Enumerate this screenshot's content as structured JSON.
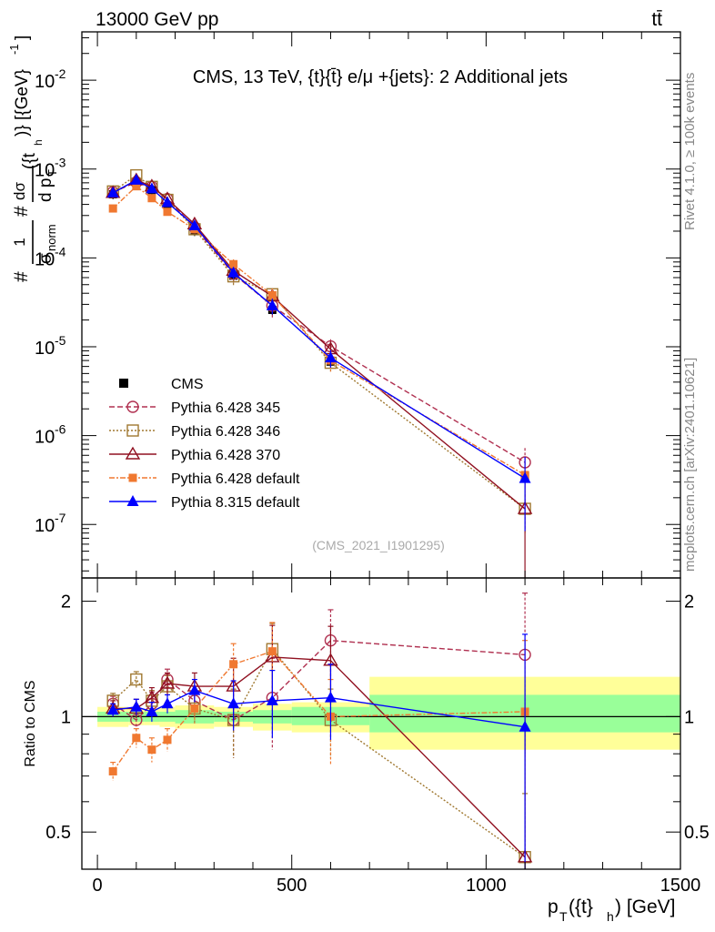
{
  "header": {
    "left_label": "13000 GeV pp",
    "right_label": "tt̄"
  },
  "side_labels": {
    "rivet": "Rivet 4.1.0, ≥ 100k events",
    "mcplots": "mcplots.cern.ch [arXiv:2401.10621]"
  },
  "colors": {
    "cms": "#000000",
    "p345": "#b03050",
    "p346": "#a07830",
    "p370": "#901020",
    "pdef": "#f07830",
    "p8": "#0000ff",
    "band_yellow": "#ffff99",
    "band_green": "#99ff99"
  },
  "chart_data": {
    "type": "line",
    "title": "CMS, 13 TeV, {t}{t̄} e/μ +{jets}: 2 Additional jets",
    "watermark": "(CMS_2021_I1901295)",
    "xlabel": "p_T({t}_h) [GeV]",
    "xlabel_main": "p",
    "xlabel_sub1": "T",
    "xlabel_mid": "({t}",
    "xlabel_sub2": "h",
    "xlabel_tail": ") [GeV]",
    "ylabel_main": "#1/σ_norm # dσ/d p_T({t}_h) [{GeV}^-1]",
    "ylabel_parts": {
      "hash1": "#",
      "one": "1",
      "sigma": "σ",
      "norm": "norm",
      "hash2": "#",
      "dsig": "dσ",
      "dp": "d p",
      "T": "T",
      "arg": "({t",
      "h": "h",
      "brace": ")} [{GeV}",
      "exp": "-1",
      "close": "]"
    },
    "ylabel_ratio": "Ratio to CMS",
    "xlim": [
      -40,
      1500
    ],
    "ylim_main": [
      2.5e-08,
      0.035
    ],
    "ylim_ratio": [
      0.4,
      2.3
    ],
    "x_ticks": [
      "0",
      "500",
      "1000",
      "1500"
    ],
    "x_tick_values": [
      0,
      500,
      1000,
      1500
    ],
    "y_ticks_main": [
      {
        "base": "10",
        "exp": "-2",
        "value": 0.01
      },
      {
        "base": "10",
        "exp": "-3",
        "value": 0.001
      },
      {
        "base": "10",
        "exp": "-4",
        "value": 0.0001
      },
      {
        "base": "10",
        "exp": "-5",
        "value": 1e-05
      },
      {
        "base": "10",
        "exp": "-6",
        "value": 1e-06
      },
      {
        "base": "10",
        "exp": "-7",
        "value": 1e-07
      }
    ],
    "y_ticks_ratio": [
      {
        "label": "2",
        "value": 2
      },
      {
        "label": "1",
        "value": 1
      },
      {
        "label": "0.5",
        "value": 0.5
      }
    ],
    "bins": [
      [
        0,
        80
      ],
      [
        80,
        120
      ],
      [
        120,
        160
      ],
      [
        160,
        200
      ],
      [
        200,
        300
      ],
      [
        300,
        400
      ],
      [
        400,
        500
      ],
      [
        500,
        700
      ],
      [
        700,
        1500
      ]
    ],
    "band": {
      "yellow": [
        [
          0.94,
          1.06
        ],
        [
          0.95,
          1.05
        ],
        [
          0.95,
          1.05
        ],
        [
          0.94,
          1.06
        ],
        [
          0.93,
          1.07
        ],
        [
          0.94,
          1.06
        ],
        [
          0.92,
          1.08
        ],
        [
          0.91,
          1.09
        ],
        [
          0.82,
          1.27
        ]
      ],
      "green": [
        [
          0.97,
          1.03
        ],
        [
          0.97,
          1.03
        ],
        [
          0.97,
          1.03
        ],
        [
          0.97,
          1.03
        ],
        [
          0.96,
          1.04
        ],
        [
          0.97,
          1.03
        ],
        [
          0.96,
          1.04
        ],
        [
          0.95,
          1.06
        ],
        [
          0.91,
          1.14
        ]
      ]
    },
    "x": [
      40,
      100,
      140,
      180,
      250,
      350,
      450,
      600,
      1100
    ],
    "cms": {
      "name": "CMS",
      "values": [
        0.00052,
        0.00072,
        0.00058,
        0.00038,
        0.0002,
        6.3e-05,
        2.6e-05,
        6.8e-06,
        3.5e-07
      ]
    },
    "series": [
      {
        "key": "p345",
        "name": "Pythia 6.428 345",
        "marker": "circle-open",
        "dash": "6,3",
        "values": [
          0.00055,
          0.00071,
          0.00063,
          0.00046,
          0.00022,
          6.6e-05,
          2.9e-05,
          1.01e-05,
          5e-07
        ],
        "ratio": [
          1.08,
          0.98,
          1.08,
          1.25,
          1.1,
          0.98,
          1.12,
          1.58,
          1.45
        ],
        "ratio_err": [
          0.05,
          0.06,
          0.08,
          0.08,
          0.1,
          0.2,
          0.3,
          0.32,
          0.65
        ]
      },
      {
        "key": "p346",
        "name": "Pythia 6.428 346",
        "marker": "square-open",
        "dash": "2,2",
        "values": [
          0.00056,
          0.00085,
          0.00063,
          0.00045,
          0.00021,
          6.2e-05,
          3.9e-05,
          6.6e-06,
          1.5e-07
        ],
        "ratio": [
          1.1,
          1.25,
          1.1,
          1.2,
          1.05,
          0.98,
          1.5,
          0.98,
          0.43
        ],
        "ratio_err": [
          0.05,
          0.06,
          0.07,
          0.08,
          0.1,
          0.2,
          0.25,
          0.2,
          0.2
        ]
      },
      {
        "key": "p370",
        "name": "Pythia 6.428 370",
        "marker": "triangle-open",
        "dash": "",
        "values": [
          0.00054,
          0.00075,
          0.00064,
          0.00046,
          0.00024,
          7.2e-05,
          3.7e-05,
          9.4e-06,
          1.5e-07
        ],
        "ratio": [
          1.05,
          1.05,
          1.12,
          1.22,
          1.2,
          1.2,
          1.43,
          1.4,
          0.43
        ],
        "ratio_err": [
          0.05,
          0.06,
          0.07,
          0.08,
          0.1,
          0.22,
          0.3,
          0.32,
          0.6
        ]
      },
      {
        "key": "pdef",
        "name": "Pythia 6.428 default",
        "marker": "square-filled",
        "dash": "6,2,2,2",
        "values": [
          0.00036,
          0.00064,
          0.00047,
          0.00033,
          0.00021,
          8.5e-05,
          3.8e-05,
          7e-06,
          3.6e-07
        ],
        "ratio": [
          0.72,
          0.88,
          0.82,
          0.87,
          1.05,
          1.37,
          1.48,
          1.0,
          1.03
        ],
        "ratio_err": [
          0.04,
          0.05,
          0.06,
          0.06,
          0.09,
          0.18,
          0.28,
          0.25,
          0.55
        ]
      },
      {
        "key": "p8",
        "name": "Pythia 8.315 default",
        "marker": "triangle-filled",
        "dash": "",
        "values": [
          0.00054,
          0.00075,
          0.0006,
          0.00042,
          0.00023,
          6.8e-05,
          2.9e-05,
          7.5e-06,
          3.3e-07
        ],
        "ratio": [
          1.04,
          1.06,
          1.03,
          1.08,
          1.17,
          1.08,
          1.1,
          1.12,
          0.94
        ],
        "ratio_err": [
          0.04,
          0.05,
          0.06,
          0.06,
          0.08,
          0.16,
          0.22,
          0.25,
          0.7
        ]
      }
    ]
  }
}
